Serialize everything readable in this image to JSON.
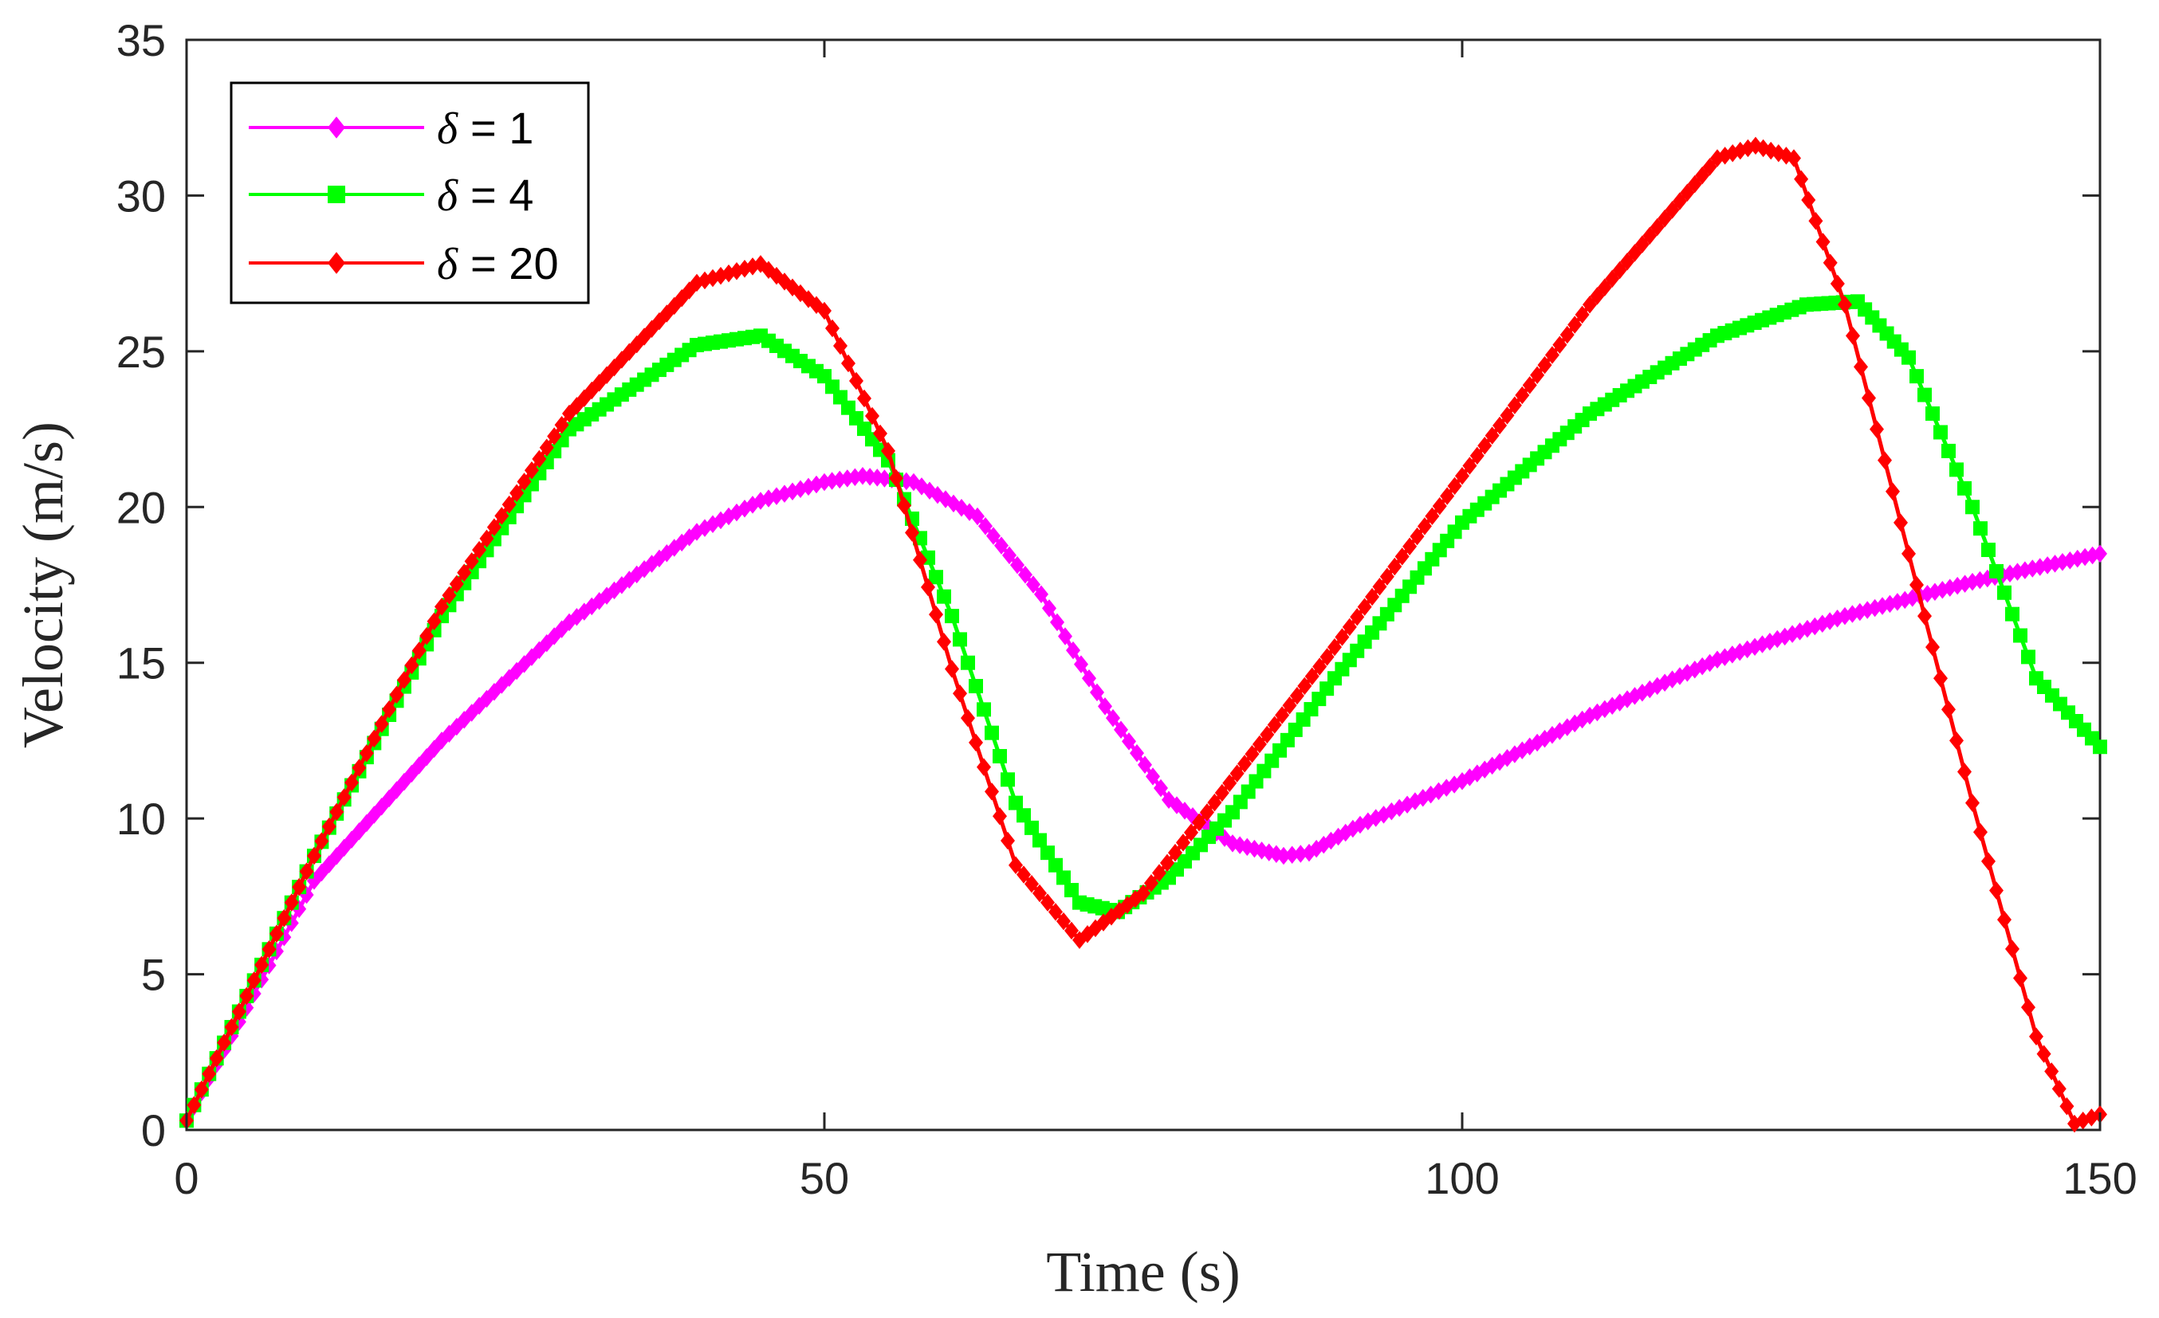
{
  "chart_data": {
    "type": "line",
    "title": "",
    "xlabel": "Time (s)",
    "ylabel": "Velocity (m/s)",
    "xlim": [
      0,
      150
    ],
    "ylim": [
      0,
      35
    ],
    "xticks": [
      0,
      50,
      100,
      150
    ],
    "yticks": [
      0,
      5,
      10,
      15,
      20,
      25,
      30,
      35
    ],
    "grid": false,
    "legend_position": "top-left",
    "series": [
      {
        "name": "δ = 1",
        "symbol": "δ",
        "value_label": "= 1",
        "color": "#ff00ff",
        "marker": "diamond",
        "x": [
          0,
          10,
          20,
          30,
          40,
          45,
          50,
          53,
          57,
          62,
          67,
          72,
          77,
          82,
          86,
          88,
          92,
          100,
          110,
          120,
          130,
          140,
          150
        ],
        "y": [
          0.3,
          8.0,
          12.5,
          16.3,
          19.2,
          20.2,
          20.8,
          21.0,
          20.8,
          19.7,
          17.2,
          13.6,
          10.6,
          9.2,
          8.8,
          8.9,
          9.8,
          11.2,
          13.3,
          15.1,
          16.5,
          17.6,
          18.5
        ]
      },
      {
        "name": "δ = 4",
        "symbol": "δ",
        "value_label": "= 4",
        "color": "#00ff00",
        "marker": "square",
        "x": [
          0,
          10,
          20,
          30,
          40,
          45,
          50,
          55,
          60,
          65,
          70,
          73,
          77,
          82,
          90,
          100,
          110,
          120,
          127,
          131,
          135,
          140,
          145,
          150
        ],
        "y": [
          0.3,
          8.8,
          16.5,
          22.5,
          25.2,
          25.5,
          24.2,
          21.5,
          16.5,
          10.5,
          7.3,
          7.0,
          8.1,
          10.2,
          14.5,
          19.5,
          23.0,
          25.5,
          26.5,
          26.6,
          24.8,
          20.0,
          14.5,
          12.3
        ]
      },
      {
        "name": "δ = 20",
        "symbol": "δ",
        "value_label": "= 20",
        "color": "#ff0000",
        "marker": "diamond",
        "x": [
          0,
          10,
          20,
          30,
          40,
          45,
          50,
          55,
          60,
          65,
          70,
          75,
          80,
          90,
          100,
          110,
          120,
          123,
          126,
          130,
          135,
          140,
          145,
          148,
          150
        ],
        "y": [
          0.3,
          8.8,
          16.8,
          23.0,
          27.2,
          27.8,
          26.3,
          21.8,
          14.8,
          8.5,
          6.1,
          7.6,
          10.2,
          15.5,
          21.0,
          26.5,
          31.2,
          31.6,
          31.2,
          26.5,
          18.5,
          10.5,
          3.0,
          0.2,
          0.5
        ]
      }
    ]
  }
}
